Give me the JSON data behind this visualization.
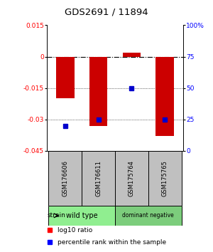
{
  "title": "GDS2691 / 11894",
  "samples": [
    "GSM176606",
    "GSM176611",
    "GSM175764",
    "GSM175765"
  ],
  "log10_ratio": [
    -0.02,
    -0.033,
    0.002,
    -0.038
  ],
  "percentile_rank": [
    20,
    25,
    50,
    25
  ],
  "ylim_left": [
    -0.045,
    0.015
  ],
  "ylim_right": [
    0,
    100
  ],
  "yticks_left": [
    0.015,
    0,
    -0.015,
    -0.03,
    -0.045
  ],
  "yticks_right": [
    100,
    75,
    50,
    25,
    0
  ],
  "ytick_labels_left": [
    "0.015",
    "0",
    "-0.015",
    "-0.03",
    "-0.045"
  ],
  "ytick_labels_right": [
    "100%",
    "75",
    "50",
    "25",
    "0"
  ],
  "groups": [
    {
      "label": "wild type",
      "samples": [
        0,
        1
      ],
      "color": "#90EE90"
    },
    {
      "label": "dominant negative",
      "samples": [
        2,
        3
      ],
      "color": "#7CCD7C"
    }
  ],
  "bar_color": "#CC0000",
  "dot_color": "#0000CC",
  "bar_width": 0.55,
  "background_color": "#ffffff",
  "zero_line_color": "#000000",
  "sample_box_color": "#C0C0C0",
  "legend_red_label": "log10 ratio",
  "legend_blue_label": "percentile rank within the sample"
}
